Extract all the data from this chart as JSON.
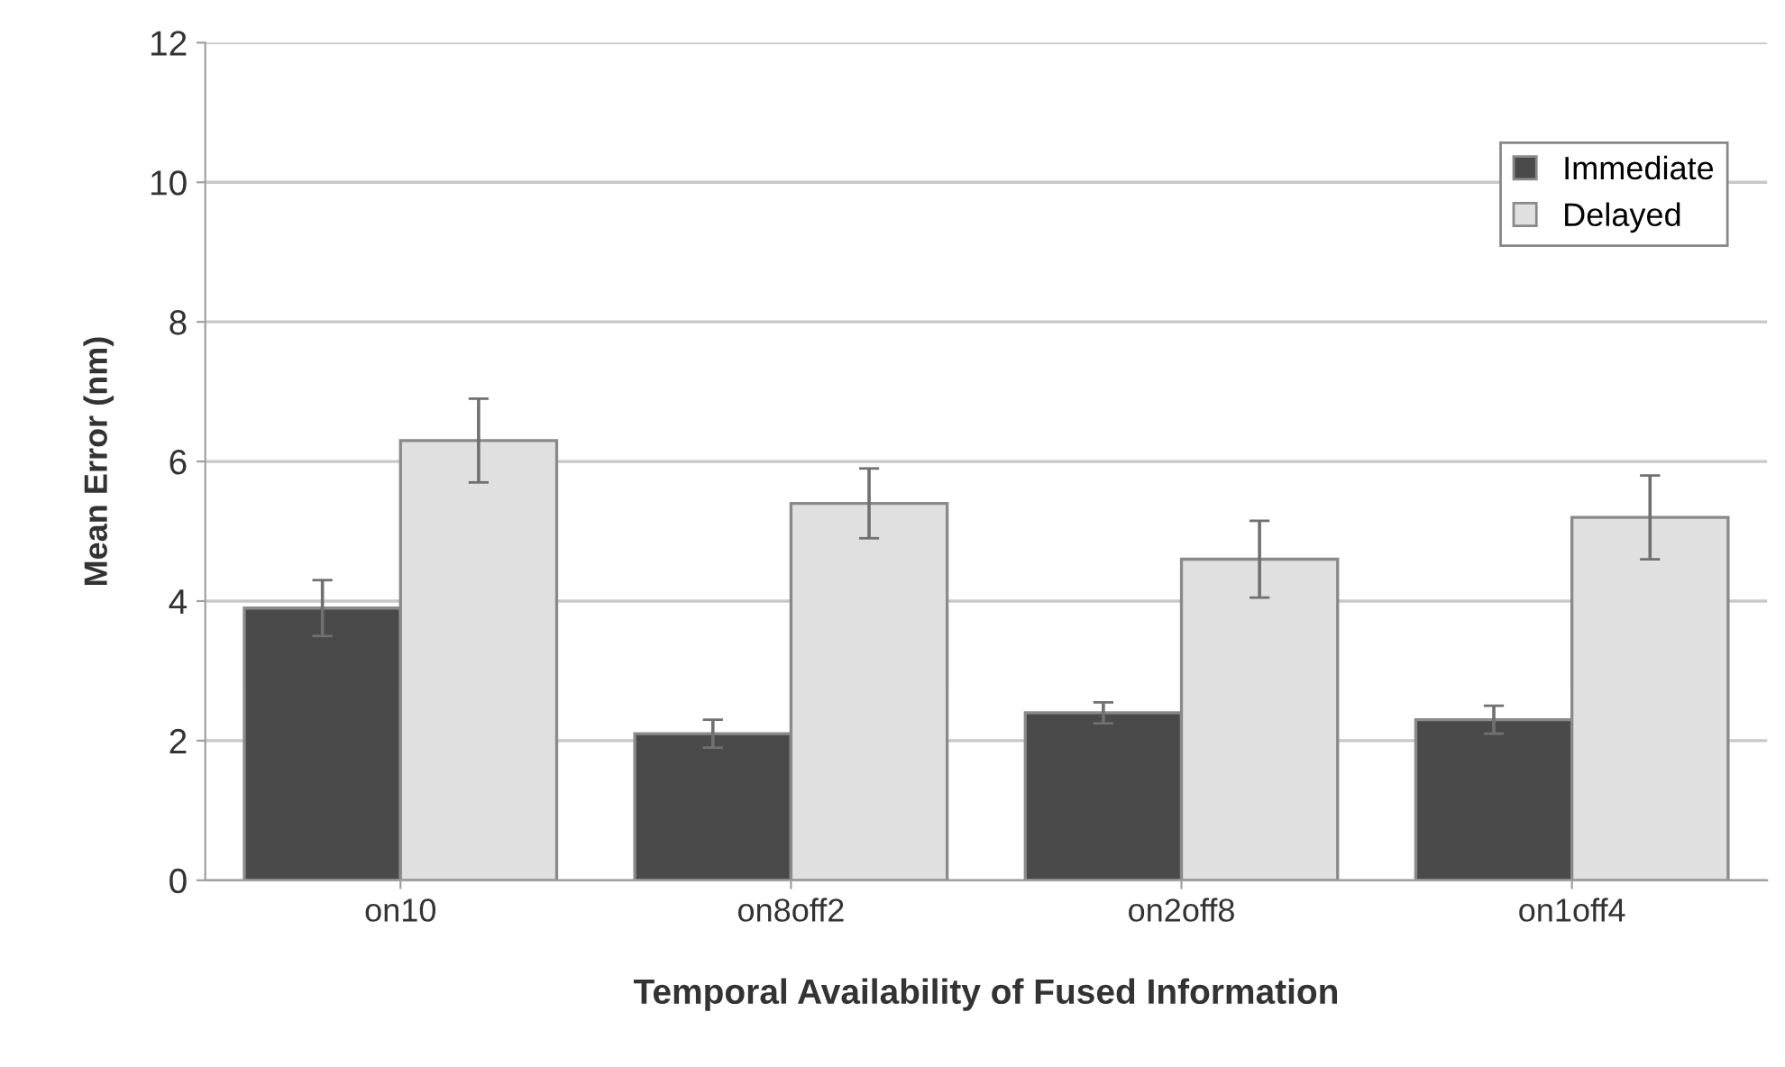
{
  "chart_data": {
    "type": "bar",
    "xlabel": "Temporal Availability of Fused Information",
    "ylabel": "Mean Error (nm)",
    "categories": [
      "on10",
      "on8off2",
      "on2off8",
      "on1off4"
    ],
    "series": [
      {
        "name": "Immediate",
        "color": "#4a4a4a",
        "values": [
          3.9,
          2.1,
          2.4,
          2.3
        ],
        "errors": [
          0.4,
          0.2,
          0.15,
          0.2
        ]
      },
      {
        "name": "Delayed",
        "color": "#e0e0e0",
        "values": [
          6.3,
          5.4,
          4.6,
          5.2
        ],
        "errors": [
          0.6,
          0.5,
          0.55,
          0.6
        ]
      }
    ],
    "ylim": [
      0,
      12
    ],
    "yticks": [
      0,
      2,
      4,
      6,
      8,
      10,
      12
    ],
    "grid": "y",
    "legend": "top right"
  }
}
